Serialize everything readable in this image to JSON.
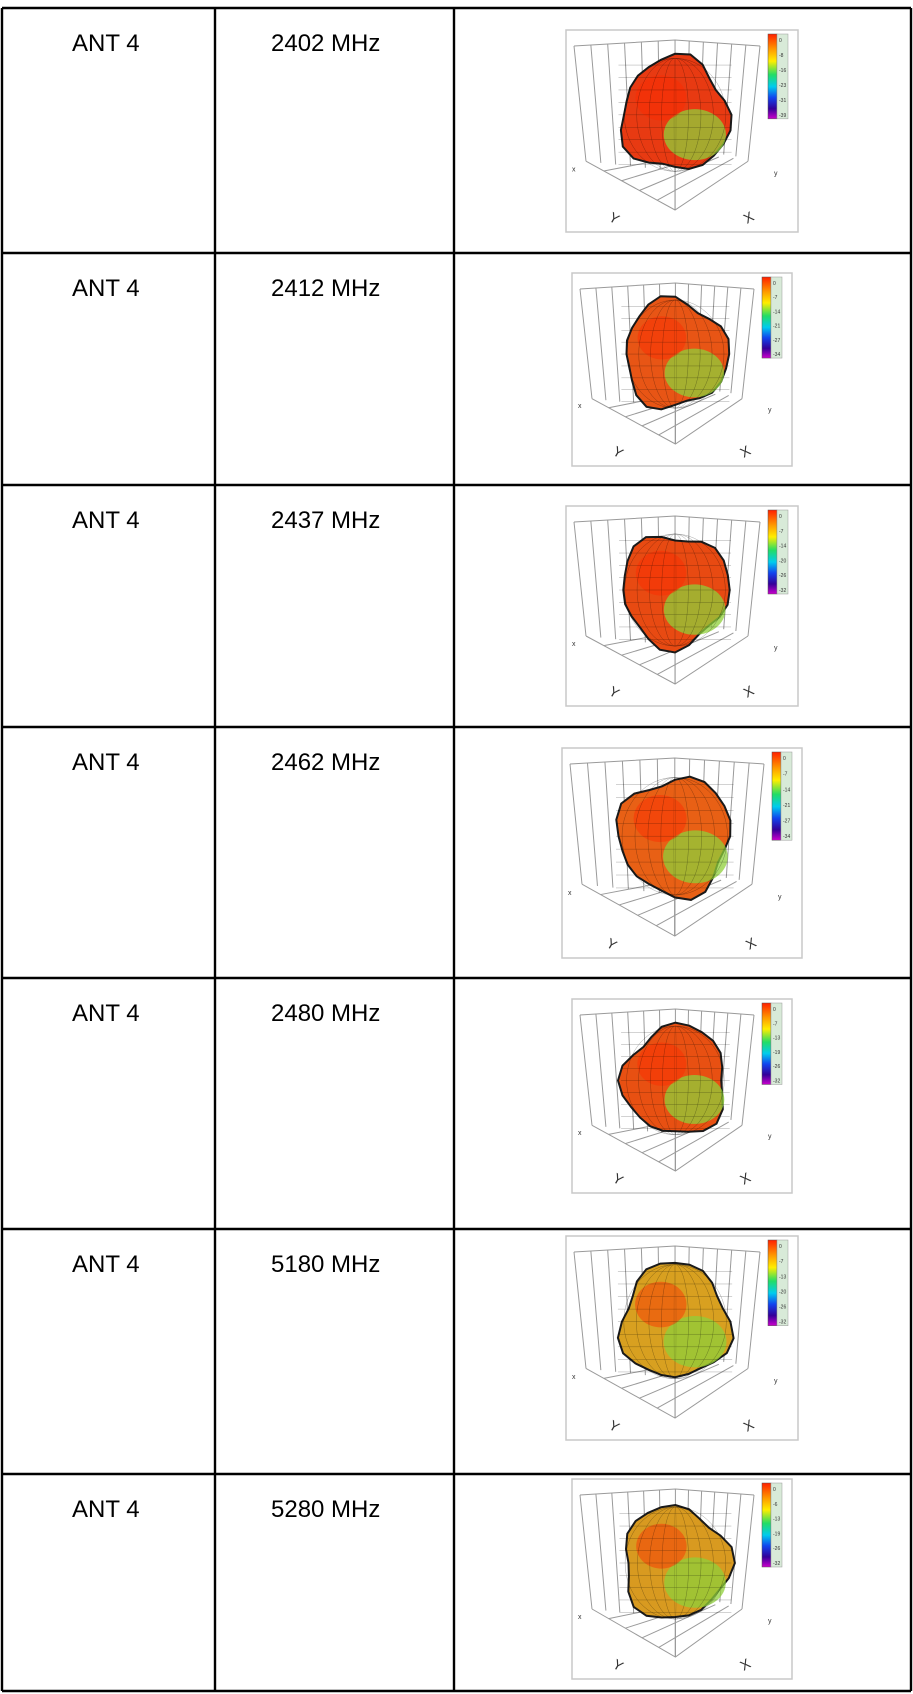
{
  "table": {
    "rows": [
      {
        "antenna": "ANT 4",
        "frequency": "2402 MHz",
        "scale": [
          "0",
          "-8",
          "-16",
          "-23",
          "-31",
          "-39"
        ],
        "pattern": {
          "shape": "bulbous-lobed",
          "dominant_color": "#e83a12"
        }
      },
      {
        "antenna": "ANT 4",
        "frequency": "2412 MHz",
        "scale": [
          "0",
          "-7",
          "-14",
          "-21",
          "-27",
          "-34"
        ],
        "pattern": {
          "shape": "bulbous-lobed",
          "dominant_color": "#e85515"
        }
      },
      {
        "antenna": "ANT 4",
        "frequency": "2437 MHz",
        "scale": [
          "0",
          "-7",
          "-14",
          "-20",
          "-26",
          "-32"
        ],
        "pattern": {
          "shape": "bulbous-lobed",
          "dominant_color": "#e84a12"
        }
      },
      {
        "antenna": "ANT 4",
        "frequency": "2462 MHz",
        "scale": [
          "0",
          "-7",
          "-14",
          "-21",
          "-27",
          "-34"
        ],
        "pattern": {
          "shape": "bulbous-lobed",
          "dominant_color": "#e86015"
        }
      },
      {
        "antenna": "ANT 4",
        "frequency": "2480 MHz",
        "scale": [
          "0",
          "-7",
          "-13",
          "-19",
          "-26",
          "-32"
        ],
        "pattern": {
          "shape": "bulbous-lobed",
          "dominant_color": "#e85012"
        }
      },
      {
        "antenna": "ANT 4",
        "frequency": "5180 MHz",
        "scale": [
          "0",
          "-7",
          "-13",
          "-20",
          "-26",
          "-32"
        ],
        "pattern": {
          "shape": "bulbous-lobed",
          "dominant_color": "#d8a020"
        }
      },
      {
        "antenna": "ANT 4",
        "frequency": "5280 MHz",
        "scale": [
          "0",
          "-6",
          "-13",
          "-19",
          "-26",
          "-32"
        ],
        "pattern": {
          "shape": "bulbous-lobed",
          "dominant_color": "#d89a20"
        }
      }
    ],
    "axis_labels": {
      "x": "X",
      "y": "Y",
      "side_x": "x",
      "side_y": "y"
    }
  }
}
